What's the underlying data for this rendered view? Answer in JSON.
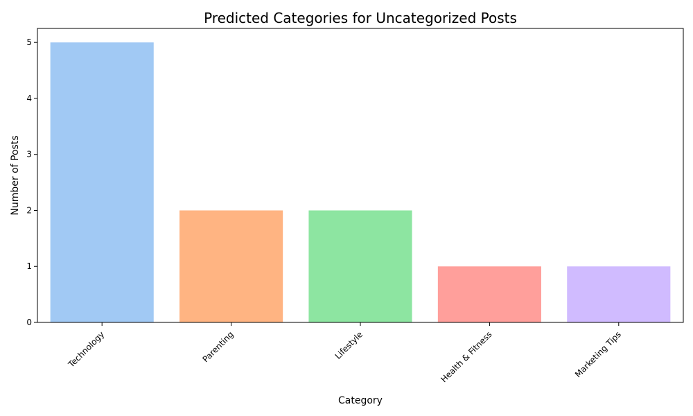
{
  "chart_data": {
    "type": "bar",
    "title": "Predicted Categories for Uncategorized Posts",
    "xlabel": "Category",
    "ylabel": "Number of Posts",
    "categories": [
      "Technology",
      "Parenting",
      "Lifestyle",
      "Health & Fitness",
      "Marketing Tips"
    ],
    "values": [
      5,
      2,
      2,
      1,
      1
    ],
    "colors": [
      "#a1c9f4",
      "#ffb482",
      "#8de5a1",
      "#ff9f9b",
      "#d0bbff"
    ],
    "ylim": [
      0,
      5.25
    ],
    "yticks": [
      "0",
      "1",
      "2",
      "3",
      "4",
      "5"
    ],
    "grid": false,
    "legend": "none"
  }
}
